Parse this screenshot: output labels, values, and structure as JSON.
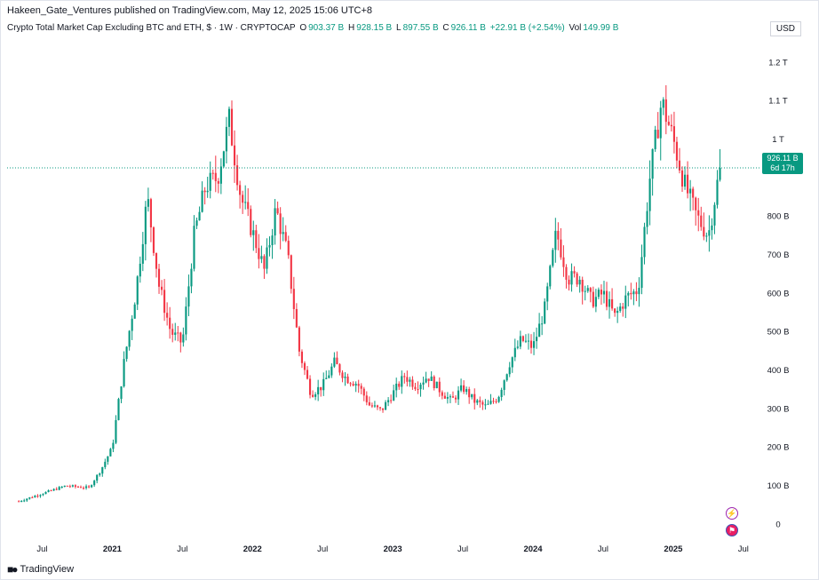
{
  "publisher_line": "Hakeen_Gate_Ventures published on TradingView.com, May 12, 2025 15:06 UTC+8",
  "legend": {
    "title": "Crypto Total Market Cap Excluding BTC and ETH, $ · 1W · CRYPTOCAP",
    "open_key": "O",
    "open": "903.37 B",
    "high_key": "H",
    "high": "928.15 B",
    "low_key": "L",
    "low": "897.55 B",
    "close_key": "C",
    "close": "926.11 B",
    "change": "+22.91 B (+2.54%)",
    "vol_key": "Vol",
    "vol": "149.99 B"
  },
  "currency_button": "USD",
  "price_tag": {
    "price": "926.11 B",
    "countdown": "6d 17h"
  },
  "brand": "TradingView",
  "colors": {
    "up": "#089981",
    "down": "#f23645",
    "price_line": "#089981"
  },
  "event_icons": [
    "lightning-icon",
    "us-flag-icon"
  ],
  "chart_data": {
    "type": "candlestick",
    "y_ticks": [
      {
        "value": 1200,
        "label": "1.2 T"
      },
      {
        "value": 1100,
        "label": "1.1 T"
      },
      {
        "value": 1000,
        "label": "1 T"
      },
      {
        "value": 900,
        "label": ""
      },
      {
        "value": 800,
        "label": "800 B"
      },
      {
        "value": 700,
        "label": "700 B"
      },
      {
        "value": 600,
        "label": "600 B"
      },
      {
        "value": 500,
        "label": "500 B"
      },
      {
        "value": 400,
        "label": "400 B"
      },
      {
        "value": 300,
        "label": "300 B"
      },
      {
        "value": 200,
        "label": "200 B"
      },
      {
        "value": 100,
        "label": "100 B"
      },
      {
        "value": 0,
        "label": "0"
      }
    ],
    "x_ticks": [
      {
        "date": "2020-07",
        "label": "Jul"
      },
      {
        "date": "2021-01",
        "label": "2021"
      },
      {
        "date": "2021-07",
        "label": "Jul"
      },
      {
        "date": "2022-01",
        "label": "2022"
      },
      {
        "date": "2022-07",
        "label": "Jul"
      },
      {
        "date": "2023-01",
        "label": "2023"
      },
      {
        "date": "2023-07",
        "label": "Jul"
      },
      {
        "date": "2024-01",
        "label": "2024"
      },
      {
        "date": "2024-07",
        "label": "Jul"
      },
      {
        "date": "2025-01",
        "label": "2025"
      },
      {
        "date": "2025-07",
        "label": "Jul"
      }
    ],
    "x_range": [
      "2020-04",
      "2025-08"
    ],
    "y_range": [
      -80,
      1270
    ],
    "last_close": 926.11,
    "weekly_closes": [
      {
        "date": "2020-05",
        "close": 60
      },
      {
        "date": "2020-07",
        "close": 80
      },
      {
        "date": "2020-09",
        "close": 100
      },
      {
        "date": "2020-11",
        "close": 95
      },
      {
        "date": "2020-12",
        "close": 140
      },
      {
        "date": "2021-01",
        "close": 200
      },
      {
        "date": "2021-02",
        "close": 420
      },
      {
        "date": "2021-03",
        "close": 600
      },
      {
        "date": "2021-04",
        "close": 850
      },
      {
        "date": "2021-05",
        "close": 620
      },
      {
        "date": "2021-06",
        "close": 500
      },
      {
        "date": "2021-07",
        "close": 470
      },
      {
        "date": "2021-08",
        "close": 750
      },
      {
        "date": "2021-09",
        "close": 880
      },
      {
        "date": "2021-10",
        "close": 900
      },
      {
        "date": "2021-11",
        "close": 1050
      },
      {
        "date": "2021-12",
        "close": 850
      },
      {
        "date": "2022-01",
        "close": 760
      },
      {
        "date": "2022-02",
        "close": 660
      },
      {
        "date": "2022-03",
        "close": 820
      },
      {
        "date": "2022-04",
        "close": 700
      },
      {
        "date": "2022-05",
        "close": 450
      },
      {
        "date": "2022-06",
        "close": 340
      },
      {
        "date": "2022-07",
        "close": 360
      },
      {
        "date": "2022-08",
        "close": 420
      },
      {
        "date": "2022-09",
        "close": 380
      },
      {
        "date": "2022-10",
        "close": 365
      },
      {
        "date": "2022-11",
        "close": 310
      },
      {
        "date": "2022-12",
        "close": 295
      },
      {
        "date": "2023-01",
        "close": 340
      },
      {
        "date": "2023-02",
        "close": 385
      },
      {
        "date": "2023-03",
        "close": 360
      },
      {
        "date": "2023-04",
        "close": 385
      },
      {
        "date": "2023-05",
        "close": 350
      },
      {
        "date": "2023-06",
        "close": 320
      },
      {
        "date": "2023-07",
        "close": 355
      },
      {
        "date": "2023-08",
        "close": 320
      },
      {
        "date": "2023-09",
        "close": 305
      },
      {
        "date": "2023-10",
        "close": 330
      },
      {
        "date": "2023-11",
        "close": 420
      },
      {
        "date": "2023-12",
        "close": 480
      },
      {
        "date": "2024-01",
        "close": 460
      },
      {
        "date": "2024-02",
        "close": 560
      },
      {
        "date": "2024-03",
        "close": 760
      },
      {
        "date": "2024-04",
        "close": 640
      },
      {
        "date": "2024-05",
        "close": 640
      },
      {
        "date": "2024-06",
        "close": 580
      },
      {
        "date": "2024-07",
        "close": 600
      },
      {
        "date": "2024-08",
        "close": 540
      },
      {
        "date": "2024-09",
        "close": 590
      },
      {
        "date": "2024-10",
        "close": 610
      },
      {
        "date": "2024-11",
        "close": 900
      },
      {
        "date": "2024-12",
        "close": 1100
      },
      {
        "date": "2025-01",
        "close": 1000
      },
      {
        "date": "2025-02",
        "close": 880
      },
      {
        "date": "2025-03",
        "close": 800
      },
      {
        "date": "2025-04",
        "close": 750
      },
      {
        "date": "2025-05",
        "close": 926
      }
    ]
  }
}
